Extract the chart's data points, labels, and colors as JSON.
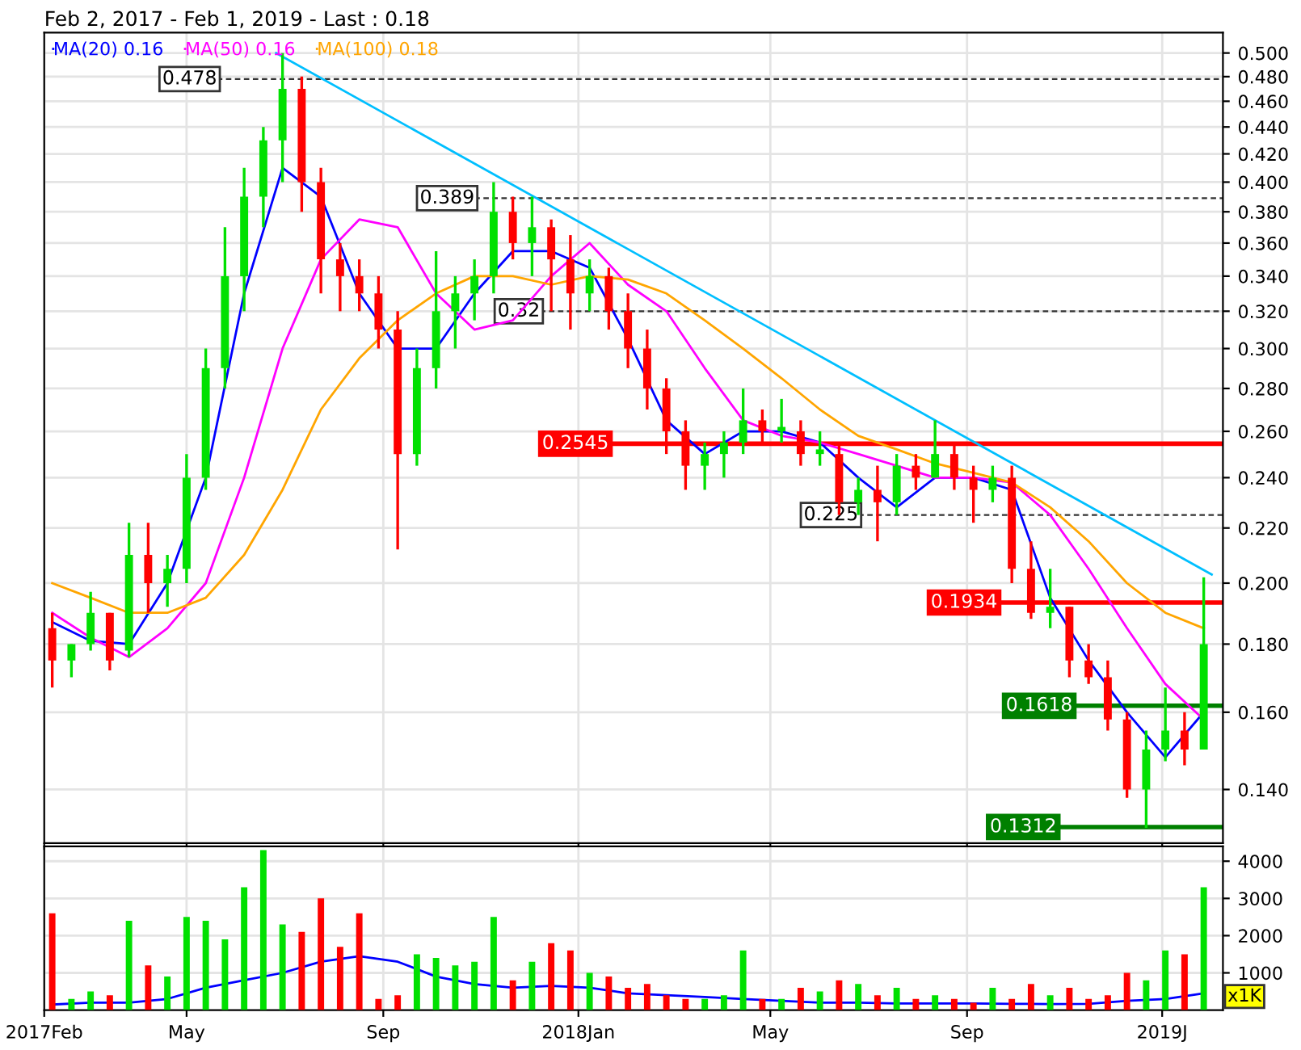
{
  "chart_data": [
    {
      "type": "candlestick",
      "title": "Feb 2, 2017 - Feb 1, 2019 - Last : 0.18",
      "x": [
        "2017-02-06",
        "2017-02-18",
        "2017-03-02",
        "2017-03-14",
        "2017-03-26",
        "2017-04-07",
        "2017-04-19",
        "2017-05-01",
        "2017-05-13",
        "2017-05-25",
        "2017-06-06",
        "2017-06-18",
        "2017-06-30",
        "2017-07-12",
        "2017-07-24",
        "2017-08-05",
        "2017-08-17",
        "2017-08-29",
        "2017-09-10",
        "2017-09-22",
        "2017-10-04",
        "2017-10-16",
        "2017-10-28",
        "2017-11-09",
        "2017-11-21",
        "2017-12-03",
        "2017-12-15",
        "2017-12-27",
        "2018-01-08",
        "2018-01-20",
        "2018-02-01",
        "2018-02-13",
        "2018-02-25",
        "2018-03-09",
        "2018-03-21",
        "2018-04-02",
        "2018-04-14",
        "2018-04-26",
        "2018-05-08",
        "2018-05-20",
        "2018-06-01",
        "2018-06-13",
        "2018-06-25",
        "2018-07-07",
        "2018-07-19",
        "2018-07-31",
        "2018-08-12",
        "2018-08-24",
        "2018-09-05",
        "2018-09-17",
        "2018-09-29",
        "2018-10-11",
        "2018-10-23",
        "2018-11-04",
        "2018-11-16",
        "2018-11-28",
        "2018-12-10",
        "2018-12-22",
        "2019-01-03",
        "2019-01-15",
        "2019-01-27"
      ],
      "ohlc": [
        [
          0.185,
          0.19,
          0.167,
          0.175
        ],
        [
          0.175,
          0.18,
          0.17,
          0.18
        ],
        [
          0.18,
          0.197,
          0.178,
          0.19
        ],
        [
          0.19,
          0.19,
          0.172,
          0.175
        ],
        [
          0.178,
          0.222,
          0.176,
          0.21
        ],
        [
          0.21,
          0.222,
          0.19,
          0.2
        ],
        [
          0.2,
          0.21,
          0.192,
          0.205
        ],
        [
          0.205,
          0.25,
          0.2,
          0.24
        ],
        [
          0.24,
          0.3,
          0.235,
          0.29
        ],
        [
          0.29,
          0.37,
          0.28,
          0.34
        ],
        [
          0.34,
          0.41,
          0.32,
          0.39
        ],
        [
          0.39,
          0.44,
          0.37,
          0.43
        ],
        [
          0.43,
          0.5,
          0.4,
          0.47
        ],
        [
          0.47,
          0.48,
          0.38,
          0.4
        ],
        [
          0.4,
          0.41,
          0.33,
          0.35
        ],
        [
          0.35,
          0.36,
          0.32,
          0.34
        ],
        [
          0.34,
          0.35,
          0.32,
          0.33
        ],
        [
          0.33,
          0.34,
          0.3,
          0.31
        ],
        [
          0.31,
          0.32,
          0.212,
          0.25
        ],
        [
          0.25,
          0.3,
          0.245,
          0.29
        ],
        [
          0.29,
          0.355,
          0.28,
          0.32
        ],
        [
          0.32,
          0.34,
          0.3,
          0.33
        ],
        [
          0.33,
          0.35,
          0.315,
          0.34
        ],
        [
          0.34,
          0.4,
          0.33,
          0.38
        ],
        [
          0.38,
          0.39,
          0.35,
          0.36
        ],
        [
          0.36,
          0.39,
          0.34,
          0.37
        ],
        [
          0.37,
          0.375,
          0.32,
          0.35
        ],
        [
          0.35,
          0.365,
          0.31,
          0.33
        ],
        [
          0.33,
          0.35,
          0.32,
          0.34
        ],
        [
          0.34,
          0.345,
          0.31,
          0.32
        ],
        [
          0.32,
          0.33,
          0.29,
          0.3
        ],
        [
          0.3,
          0.31,
          0.27,
          0.28
        ],
        [
          0.28,
          0.285,
          0.25,
          0.26
        ],
        [
          0.26,
          0.265,
          0.235,
          0.245
        ],
        [
          0.245,
          0.255,
          0.235,
          0.25
        ],
        [
          0.25,
          0.26,
          0.24,
          0.255
        ],
        [
          0.255,
          0.28,
          0.25,
          0.265
        ],
        [
          0.265,
          0.27,
          0.255,
          0.26
        ],
        [
          0.26,
          0.275,
          0.255,
          0.262
        ],
        [
          0.26,
          0.265,
          0.245,
          0.25
        ],
        [
          0.25,
          0.26,
          0.245,
          0.252
        ],
        [
          0.25,
          0.255,
          0.225,
          0.23
        ],
        [
          0.23,
          0.24,
          0.225,
          0.235
        ],
        [
          0.235,
          0.245,
          0.215,
          0.23
        ],
        [
          0.23,
          0.25,
          0.225,
          0.245
        ],
        [
          0.245,
          0.25,
          0.235,
          0.24
        ],
        [
          0.24,
          0.265,
          0.24,
          0.25
        ],
        [
          0.25,
          0.255,
          0.235,
          0.24
        ],
        [
          0.24,
          0.245,
          0.222,
          0.235
        ],
        [
          0.235,
          0.245,
          0.23,
          0.24
        ],
        [
          0.24,
          0.245,
          0.2,
          0.205
        ],
        [
          0.205,
          0.215,
          0.188,
          0.19
        ],
        [
          0.19,
          0.205,
          0.185,
          0.192
        ],
        [
          0.192,
          0.192,
          0.17,
          0.175
        ],
        [
          0.175,
          0.18,
          0.168,
          0.17
        ],
        [
          0.17,
          0.175,
          0.155,
          0.158
        ],
        [
          0.158,
          0.16,
          0.138,
          0.14
        ],
        [
          0.14,
          0.155,
          0.131,
          0.15
        ],
        [
          0.15,
          0.167,
          0.147,
          0.155
        ],
        [
          0.155,
          0.16,
          0.146,
          0.15
        ],
        [
          0.15,
          0.202,
          0.15,
          0.18
        ]
      ],
      "colors": [
        "#ff0000",
        "#00e000",
        "#00e000",
        "#ff0000",
        "#00e000",
        "#ff0000",
        "#00e000",
        "#00e000",
        "#00e000",
        "#00e000",
        "#00e000",
        "#00e000",
        "#00e000",
        "#ff0000",
        "#ff0000",
        "#ff0000",
        "#ff0000",
        "#ff0000",
        "#ff0000",
        "#00e000",
        "#00e000",
        "#00e000",
        "#00e000",
        "#00e000",
        "#ff0000",
        "#00e000",
        "#ff0000",
        "#ff0000",
        "#00e000",
        "#ff0000",
        "#ff0000",
        "#ff0000",
        "#ff0000",
        "#ff0000",
        "#00e000",
        "#00e000",
        "#00e000",
        "#ff0000",
        "#00e000",
        "#ff0000",
        "#00e000",
        "#ff0000",
        "#00e000",
        "#ff0000",
        "#00e000",
        "#ff0000",
        "#00e000",
        "#ff0000",
        "#ff0000",
        "#00e000",
        "#ff0000",
        "#ff0000",
        "#00e000",
        "#ff0000",
        "#ff0000",
        "#ff0000",
        "#ff0000",
        "#00e000",
        "#00e000",
        "#ff0000",
        "#00e000"
      ],
      "series": [
        {
          "type": "line",
          "name": "MA(20) 0.16",
          "color": "#0000ff",
          "x": [
            "2017-02-06",
            "2017-03-02",
            "2017-03-26",
            "2017-04-19",
            "2017-05-13",
            "2017-06-06",
            "2017-06-30",
            "2017-07-24",
            "2017-08-17",
            "2017-09-10",
            "2017-10-04",
            "2017-10-28",
            "2017-11-21",
            "2017-12-15",
            "2018-01-08",
            "2018-02-01",
            "2018-02-25",
            "2018-03-21",
            "2018-04-14",
            "2018-05-08",
            "2018-06-01",
            "2018-06-25",
            "2018-07-19",
            "2018-08-12",
            "2018-09-05",
            "2018-09-29",
            "2018-10-23",
            "2018-11-16",
            "2018-12-10",
            "2019-01-03",
            "2019-01-27"
          ],
          "values": [
            0.187,
            0.181,
            0.18,
            0.2,
            0.24,
            0.33,
            0.41,
            0.39,
            0.33,
            0.3,
            0.3,
            0.33,
            0.355,
            0.355,
            0.345,
            0.305,
            0.265,
            0.25,
            0.26,
            0.26,
            0.255,
            0.24,
            0.228,
            0.24,
            0.24,
            0.235,
            0.195,
            0.175,
            0.16,
            0.148,
            0.16
          ]
        },
        {
          "type": "line",
          "name": "MA(50) 0.16",
          "color": "#ff00ff",
          "x": [
            "2017-02-06",
            "2017-03-02",
            "2017-03-26",
            "2017-04-19",
            "2017-05-13",
            "2017-06-06",
            "2017-06-30",
            "2017-07-24",
            "2017-08-17",
            "2017-09-10",
            "2017-10-04",
            "2017-10-28",
            "2017-11-21",
            "2017-12-15",
            "2018-01-08",
            "2018-02-01",
            "2018-02-25",
            "2018-03-21",
            "2018-04-14",
            "2018-05-08",
            "2018-06-01",
            "2018-06-25",
            "2018-07-19",
            "2018-08-12",
            "2018-09-05",
            "2018-09-29",
            "2018-10-23",
            "2018-11-16",
            "2018-12-10",
            "2019-01-03",
            "2019-01-27"
          ],
          "values": [
            0.19,
            0.182,
            0.176,
            0.185,
            0.2,
            0.24,
            0.3,
            0.35,
            0.375,
            0.37,
            0.33,
            0.31,
            0.315,
            0.34,
            0.36,
            0.335,
            0.32,
            0.29,
            0.265,
            0.258,
            0.255,
            0.25,
            0.245,
            0.24,
            0.24,
            0.238,
            0.225,
            0.205,
            0.185,
            0.168,
            0.158
          ]
        },
        {
          "type": "line",
          "name": "MA(100) 0.18",
          "color": "#ffa500",
          "x": [
            "2017-02-06",
            "2017-03-02",
            "2017-03-26",
            "2017-04-19",
            "2017-05-13",
            "2017-06-06",
            "2017-06-30",
            "2017-07-24",
            "2017-08-17",
            "2017-09-10",
            "2017-10-04",
            "2017-10-28",
            "2017-11-21",
            "2017-12-15",
            "2018-01-08",
            "2018-02-01",
            "2018-02-25",
            "2018-03-21",
            "2018-04-14",
            "2018-05-08",
            "2018-06-01",
            "2018-06-25",
            "2018-07-19",
            "2018-08-12",
            "2018-09-05",
            "2018-09-29",
            "2018-10-23",
            "2018-11-16",
            "2018-12-10",
            "2019-01-03",
            "2019-01-27"
          ],
          "values": [
            0.2,
            0.195,
            0.19,
            0.19,
            0.195,
            0.21,
            0.235,
            0.27,
            0.295,
            0.315,
            0.33,
            0.34,
            0.34,
            0.335,
            0.34,
            0.338,
            0.33,
            0.315,
            0.3,
            0.285,
            0.27,
            0.258,
            0.252,
            0.246,
            0.242,
            0.238,
            0.228,
            0.215,
            0.2,
            0.19,
            0.185
          ]
        },
        {
          "type": "line",
          "color": "#00bfff",
          "x": [
            "2017-06-26",
            "2019-02-01"
          ],
          "values": [
            0.5,
            0.203
          ]
        }
      ],
      "ref_lines": [
        {
          "axis": "y",
          "value": 0.478,
          "color": "#333333",
          "line_style": "dashed"
        },
        {
          "axis": "y",
          "value": 0.389,
          "color": "#333333",
          "line_style": "dashed"
        },
        {
          "axis": "y",
          "value": 0.32,
          "color": "#333333",
          "line_style": "dashed"
        },
        {
          "axis": "y",
          "value": 0.2545,
          "color": "#ff0000",
          "line_style": "solid"
        },
        {
          "axis": "y",
          "value": 0.225,
          "color": "#333333",
          "line_style": "dashed"
        },
        {
          "axis": "y",
          "value": 0.1934,
          "color": "#ff0000",
          "line_style": "solid"
        },
        {
          "axis": "y",
          "value": 0.1618,
          "color": "#008000",
          "line_style": "solid"
        },
        {
          "axis": "y",
          "value": 0.1312,
          "color": "#008000",
          "line_style": "solid"
        }
      ],
      "annotations": [
        {
          "text": "0.478",
          "x": "2017-05-20",
          "y": 0.478
        },
        {
          "text": "0.389",
          "x": "2017-10-28",
          "y": 0.389
        },
        {
          "text": "0.32",
          "x": "2017-12-08",
          "y": 0.32
        },
        {
          "text": "0.2545",
          "x": "2018-01-20",
          "y": 0.2545
        },
        {
          "text": "0.225",
          "x": "2018-06-25",
          "y": 0.225
        },
        {
          "text": "0.1934",
          "x": "2018-09-20",
          "y": 0.1934
        },
        {
          "text": "0.1618",
          "x": "2018-11-06",
          "y": 0.1618
        },
        {
          "text": "0.1312",
          "x": "2018-10-27",
          "y": 0.1312
        }
      ],
      "log": "y",
      "xlim": [
        "2017-02-01",
        "2019-02-08"
      ],
      "ylim": [
        0.1276,
        0.518
      ],
      "xticks": [
        {
          "value": "2017-02-01",
          "label": null
        },
        {
          "value": "2017-05-01",
          "label": null
        },
        {
          "value": "2017-09-01",
          "label": null
        },
        {
          "value": "2018-01-01",
          "label": null
        },
        {
          "value": "2018-05-01",
          "label": null
        },
        {
          "value": "2018-09-01",
          "label": null
        },
        {
          "value": "2019-01-01",
          "label": null
        }
      ],
      "yticks": [
        {
          "value": 0.14,
          "label": "0.140"
        },
        {
          "value": 0.16,
          "label": "0.160"
        },
        {
          "value": 0.18,
          "label": "0.180"
        },
        {
          "value": 0.2,
          "label": "0.200"
        },
        {
          "value": 0.22,
          "label": "0.220"
        },
        {
          "value": 0.24,
          "label": "0.240"
        },
        {
          "value": 0.26,
          "label": "0.260"
        },
        {
          "value": 0.28,
          "label": "0.280"
        },
        {
          "value": 0.3,
          "label": "0.300"
        },
        {
          "value": 0.32,
          "label": "0.320"
        },
        {
          "value": 0.34,
          "label": "0.340"
        },
        {
          "value": 0.36,
          "label": "0.360"
        },
        {
          "value": 0.38,
          "label": "0.380"
        },
        {
          "value": 0.4,
          "label": "0.400"
        },
        {
          "value": 0.42,
          "label": "0.420"
        },
        {
          "value": 0.44,
          "label": "0.440"
        },
        {
          "value": 0.46,
          "label": "0.460"
        },
        {
          "value": 0.48,
          "label": "0.480"
        },
        {
          "value": 0.5,
          "label": "0.500"
        }
      ],
      "tick_labels": "y",
      "grid": true,
      "legend": "top left"
    },
    {
      "type": "bar",
      "x": [
        "2017-02-06",
        "2017-02-18",
        "2017-03-02",
        "2017-03-14",
        "2017-03-26",
        "2017-04-07",
        "2017-04-19",
        "2017-05-01",
        "2017-05-13",
        "2017-05-25",
        "2017-06-06",
        "2017-06-18",
        "2017-06-30",
        "2017-07-12",
        "2017-07-24",
        "2017-08-05",
        "2017-08-17",
        "2017-08-29",
        "2017-09-10",
        "2017-09-22",
        "2017-10-04",
        "2017-10-16",
        "2017-10-28",
        "2017-11-09",
        "2017-11-21",
        "2017-12-03",
        "2017-12-15",
        "2017-12-27",
        "2018-01-08",
        "2018-01-20",
        "2018-02-01",
        "2018-02-13",
        "2018-02-25",
        "2018-03-09",
        "2018-03-21",
        "2018-04-02",
        "2018-04-14",
        "2018-04-26",
        "2018-05-08",
        "2018-05-20",
        "2018-06-01",
        "2018-06-13",
        "2018-06-25",
        "2018-07-07",
        "2018-07-19",
        "2018-07-31",
        "2018-08-12",
        "2018-08-24",
        "2018-09-05",
        "2018-09-17",
        "2018-09-29",
        "2018-10-11",
        "2018-10-23",
        "2018-11-04",
        "2018-11-16",
        "2018-11-28",
        "2018-12-10",
        "2018-12-22",
        "2019-01-03",
        "2019-01-15",
        "2019-01-27"
      ],
      "values": [
        2600,
        300,
        500,
        400,
        2400,
        1200,
        900,
        2500,
        2400,
        1900,
        3300,
        4300,
        2300,
        2100,
        3000,
        1700,
        2600,
        300,
        400,
        1500,
        1400,
        1200,
        1300,
        2500,
        800,
        1300,
        1800,
        1600,
        1000,
        900,
        600,
        700,
        400,
        300,
        300,
        400,
        1600,
        300,
        300,
        600,
        500,
        800,
        700,
        400,
        600,
        300,
        400,
        300,
        200,
        600,
        300,
        700,
        400,
        600,
        300,
        400,
        1000,
        800,
        1600,
        1500,
        3300
      ],
      "colors": [
        "#ff0000",
        "#00e000",
        "#00e000",
        "#ff0000",
        "#00e000",
        "#ff0000",
        "#00e000",
        "#00e000",
        "#00e000",
        "#00e000",
        "#00e000",
        "#00e000",
        "#00e000",
        "#ff0000",
        "#ff0000",
        "#ff0000",
        "#ff0000",
        "#ff0000",
        "#ff0000",
        "#00e000",
        "#00e000",
        "#00e000",
        "#00e000",
        "#00e000",
        "#ff0000",
        "#00e000",
        "#ff0000",
        "#ff0000",
        "#00e000",
        "#ff0000",
        "#ff0000",
        "#ff0000",
        "#ff0000",
        "#ff0000",
        "#00e000",
        "#00e000",
        "#00e000",
        "#ff0000",
        "#00e000",
        "#ff0000",
        "#00e000",
        "#ff0000",
        "#00e000",
        "#ff0000",
        "#00e000",
        "#ff0000",
        "#00e000",
        "#ff0000",
        "#ff0000",
        "#00e000",
        "#ff0000",
        "#ff0000",
        "#00e000",
        "#ff0000",
        "#ff0000",
        "#ff0000",
        "#ff0000",
        "#00e000",
        "#00e000",
        "#ff0000",
        "#00e000"
      ],
      "series": [
        {
          "type": "line",
          "color": "#0000ff",
          "x": [
            "2017-02-06",
            "2017-03-02",
            "2017-03-26",
            "2017-04-19",
            "2017-05-13",
            "2017-06-06",
            "2017-06-30",
            "2017-07-24",
            "2017-08-17",
            "2017-09-10",
            "2017-10-04",
            "2017-10-28",
            "2017-11-21",
            "2017-12-15",
            "2018-01-08",
            "2018-02-01",
            "2018-02-25",
            "2018-03-21",
            "2018-04-14",
            "2018-05-08",
            "2018-06-01",
            "2018-06-25",
            "2018-07-19",
            "2018-08-12",
            "2018-09-05",
            "2018-09-29",
            "2018-10-23",
            "2018-11-16",
            "2018-12-10",
            "2019-01-03",
            "2019-01-27"
          ],
          "values": [
            150,
            200,
            200,
            300,
            600,
            800,
            1000,
            1300,
            1450,
            1300,
            900,
            700,
            600,
            650,
            600,
            450,
            400,
            350,
            300,
            250,
            200,
            200,
            180,
            180,
            180,
            170,
            160,
            170,
            250,
            300,
            450
          ]
        }
      ],
      "annotations": [
        "x1K"
      ],
      "xlim": [
        "2017-02-01",
        "2019-02-08"
      ],
      "ylim": [
        0,
        4400
      ],
      "xticks": [
        {
          "value": "2017-02-01",
          "label": "2017Feb"
        },
        {
          "value": "2017-05-01",
          "label": "May"
        },
        {
          "value": "2017-09-01",
          "label": "Sep"
        },
        {
          "value": "2018-01-01",
          "label": "2018Jan"
        },
        {
          "value": "2018-05-01",
          "label": "May"
        },
        {
          "value": "2018-09-01",
          "label": "Sep"
        },
        {
          "value": "2019-01-01",
          "label": "2019J"
        }
      ],
      "yticks": [
        1000,
        2000,
        3000,
        4000
      ],
      "grid": true
    }
  ]
}
